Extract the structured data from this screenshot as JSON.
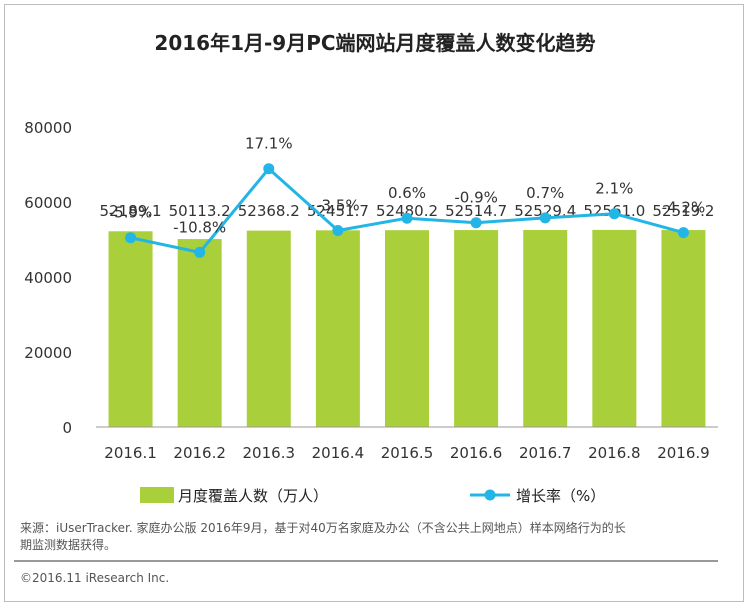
{
  "chart_data": {
    "type": "bar",
    "title": "2016年1月-9月PC端网站月度覆盖人数变化趋势",
    "categories": [
      "2016.1",
      "2016.2",
      "2016.3",
      "2016.4",
      "2016.5",
      "2016.6",
      "2016.7",
      "2016.8",
      "2016.9"
    ],
    "series": [
      {
        "name": "月度覆盖人数（万人）",
        "type": "bar",
        "values": [
          52189.1,
          50113.2,
          52368.2,
          52451.7,
          52480.2,
          52514.7,
          52529.4,
          52561.0,
          52519.2
        ],
        "labels": [
          "52189.1",
          "50113.2",
          "52368.2",
          "52451.7",
          "52480.2",
          "52514.7",
          "52529.4",
          "52561.0",
          "52519.2"
        ],
        "color": "#a9cf3a"
      },
      {
        "name": "增长率（%）",
        "type": "line",
        "values": [
          -5.9,
          -10.8,
          17.1,
          -3.5,
          0.6,
          -0.9,
          0.7,
          2.1,
          -4.2
        ],
        "labels": [
          "-5.9%",
          "-10.8%",
          "17.1%",
          "-3.5%",
          "0.6%",
          "-0.9%",
          "0.7%",
          "2.1%",
          "-4.2%"
        ],
        "color": "#22b5e6"
      }
    ],
    "yticks": [
      "0",
      "20000",
      "40000",
      "60000",
      "80000"
    ],
    "ylim": [
      0,
      80000
    ],
    "legend_position": "bottom",
    "grid": false
  },
  "footer": {
    "note": "来源：iUserTracker. 家庭办公版 2016年9月，基于对40万名家庭及办公（不含公共上网地点）样本网络行为的长期监测数据获得。",
    "copyright": "©2016.11 iResearch Inc."
  }
}
